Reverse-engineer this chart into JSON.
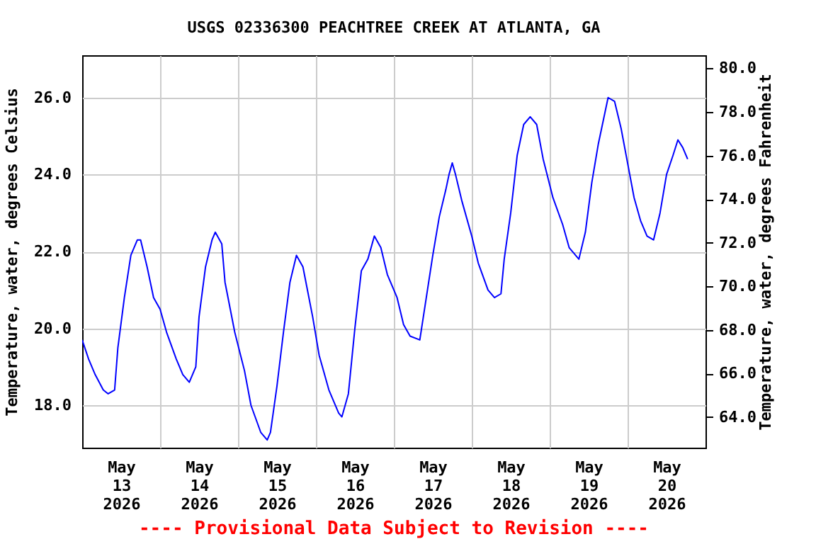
{
  "chart_data": {
    "type": "line",
    "title": "USGS 02336300 PEACHTREE CREEK AT ATLANTA, GA",
    "ylabel": "Temperature, water, degrees Celsius",
    "y2label": "Temperature, water, degrees Fahrenheit",
    "annotations": [
      "---- Provisional Data Subject to Revision ----"
    ],
    "xlim": [
      "2026-05-13T00:00",
      "2026-05-21T00:00"
    ],
    "xticks": [
      {
        "value": "2026-05-13T12:00",
        "label": "May 13 2026"
      },
      {
        "value": "2026-05-14T00:00",
        "label": null
      },
      {
        "value": "2026-05-14T12:00",
        "label": "May 14 2026"
      },
      {
        "value": "2026-05-15T00:00",
        "label": null
      },
      {
        "value": "2026-05-15T12:00",
        "label": "May 15 2026"
      },
      {
        "value": "2026-05-16T00:00",
        "label": null
      },
      {
        "value": "2026-05-16T12:00",
        "label": "May 16 2026"
      },
      {
        "value": "2026-05-17T00:00",
        "label": null
      },
      {
        "value": "2026-05-17T12:00",
        "label": "May 17 2026"
      },
      {
        "value": "2026-05-18T00:00",
        "label": null
      },
      {
        "value": "2026-05-18T12:00",
        "label": "May 18 2026"
      },
      {
        "value": "2026-05-19T00:00",
        "label": null
      },
      {
        "value": "2026-05-19T12:00",
        "label": "May 19 2026"
      },
      {
        "value": "2026-05-20T00:00",
        "label": null
      },
      {
        "value": "2026-05-20T12:00",
        "label": "May 20 2026"
      }
    ],
    "ylim": [
      16.9,
      27.1
    ],
    "yticks": [
      {
        "value": 18,
        "label": "18.0"
      },
      {
        "value": 20,
        "label": "20.0"
      },
      {
        "value": 22,
        "label": "22.0"
      },
      {
        "value": 24,
        "label": "24.0"
      },
      {
        "value": 26,
        "label": "26.0"
      }
    ],
    "y2lim": [
      62.6,
      80.6
    ],
    "y2ticks": [
      {
        "value": 64,
        "label": "64.0"
      },
      {
        "value": 66,
        "label": "66.0"
      },
      {
        "value": 68,
        "label": "68.0"
      },
      {
        "value": 70,
        "label": "70.0"
      },
      {
        "value": 72,
        "label": "72.0"
      },
      {
        "value": 74,
        "label": "74.0"
      },
      {
        "value": 76,
        "label": "76.0"
      },
      {
        "value": 78,
        "label": "78.0"
      },
      {
        "value": 80,
        "label": "80.0"
      }
    ],
    "grid": true,
    "series": [
      {
        "color": "#0000ff",
        "x": [
          "2026-05-13T00:00",
          "2026-05-13T02:00",
          "2026-05-13T04:00",
          "2026-05-13T06:30",
          "2026-05-13T08:00",
          "2026-05-13T10:00",
          "2026-05-13T11:00",
          "2026-05-13T13:00",
          "2026-05-13T15:00",
          "2026-05-13T17:00",
          "2026-05-13T18:00",
          "2026-05-13T20:00",
          "2026-05-13T22:00",
          "2026-05-14T00:00",
          "2026-05-14T02:00",
          "2026-05-14T05:00",
          "2026-05-14T07:00",
          "2026-05-14T09:00",
          "2026-05-14T11:00",
          "2026-05-14T12:00",
          "2026-05-14T14:00",
          "2026-05-14T16:00",
          "2026-05-14T17:00",
          "2026-05-14T19:00",
          "2026-05-14T20:00",
          "2026-05-14T23:00",
          "2026-05-15T02:00",
          "2026-05-15T04:00",
          "2026-05-15T07:00",
          "2026-05-15T09:00",
          "2026-05-15T10:00",
          "2026-05-15T12:00",
          "2026-05-15T14:00",
          "2026-05-15T16:00",
          "2026-05-15T18:00",
          "2026-05-15T20:00",
          "2026-05-15T23:00",
          "2026-05-16T01:00",
          "2026-05-16T04:00",
          "2026-05-16T07:00",
          "2026-05-16T08:00",
          "2026-05-16T10:00",
          "2026-05-16T12:00",
          "2026-05-16T14:00",
          "2026-05-16T16:00",
          "2026-05-16T18:00",
          "2026-05-16T20:00",
          "2026-05-16T22:00",
          "2026-05-17T01:00",
          "2026-05-17T03:00",
          "2026-05-17T05:00",
          "2026-05-17T08:00",
          "2026-05-17T10:00",
          "2026-05-17T12:00",
          "2026-05-17T14:00",
          "2026-05-17T16:00",
          "2026-05-17T17:00",
          "2026-05-17T18:00",
          "2026-05-17T19:00",
          "2026-05-17T21:00",
          "2026-05-18T00:00",
          "2026-05-18T02:00",
          "2026-05-18T05:00",
          "2026-05-18T07:00",
          "2026-05-18T09:00",
          "2026-05-18T10:00",
          "2026-05-18T12:00",
          "2026-05-18T14:00",
          "2026-05-18T16:00",
          "2026-05-18T18:00",
          "2026-05-18T20:00",
          "2026-05-18T22:00",
          "2026-05-19T01:00",
          "2026-05-19T04:00",
          "2026-05-19T06:00",
          "2026-05-19T09:00",
          "2026-05-19T11:00",
          "2026-05-19T13:00",
          "2026-05-19T15:00",
          "2026-05-19T17:00",
          "2026-05-19T18:00",
          "2026-05-19T20:00",
          "2026-05-19T22:00",
          "2026-05-20T00:00",
          "2026-05-20T02:00",
          "2026-05-20T04:00",
          "2026-05-20T06:00",
          "2026-05-20T08:00",
          "2026-05-20T10:00",
          "2026-05-20T12:00",
          "2026-05-20T14:00",
          "2026-05-20T15:30",
          "2026-05-20T17:00",
          "2026-05-20T18:30"
        ],
        "values": [
          19.7,
          19.2,
          18.8,
          18.4,
          18.3,
          18.4,
          19.5,
          20.8,
          21.9,
          22.3,
          22.3,
          21.6,
          20.8,
          20.5,
          19.9,
          19.2,
          18.8,
          18.6,
          19.0,
          20.3,
          21.6,
          22.3,
          22.5,
          22.2,
          21.2,
          19.9,
          18.9,
          18.0,
          17.3,
          17.1,
          17.3,
          18.5,
          19.9,
          21.2,
          21.9,
          21.6,
          20.3,
          19.3,
          18.4,
          17.8,
          17.7,
          18.3,
          20.0,
          21.5,
          21.8,
          22.4,
          22.1,
          21.4,
          20.8,
          20.1,
          19.8,
          19.7,
          20.8,
          21.9,
          22.9,
          23.6,
          24.0,
          24.3,
          24.0,
          23.3,
          22.4,
          21.7,
          21.0,
          20.8,
          20.9,
          21.8,
          23.0,
          24.5,
          25.3,
          25.5,
          25.3,
          24.4,
          23.4,
          22.7,
          22.1,
          21.8,
          22.5,
          23.8,
          24.8,
          25.6,
          26.0,
          25.9,
          25.2,
          24.3,
          23.4,
          22.8,
          22.4,
          22.3,
          23.0,
          24.0,
          24.5,
          24.9,
          24.7,
          24.4
        ]
      }
    ]
  }
}
